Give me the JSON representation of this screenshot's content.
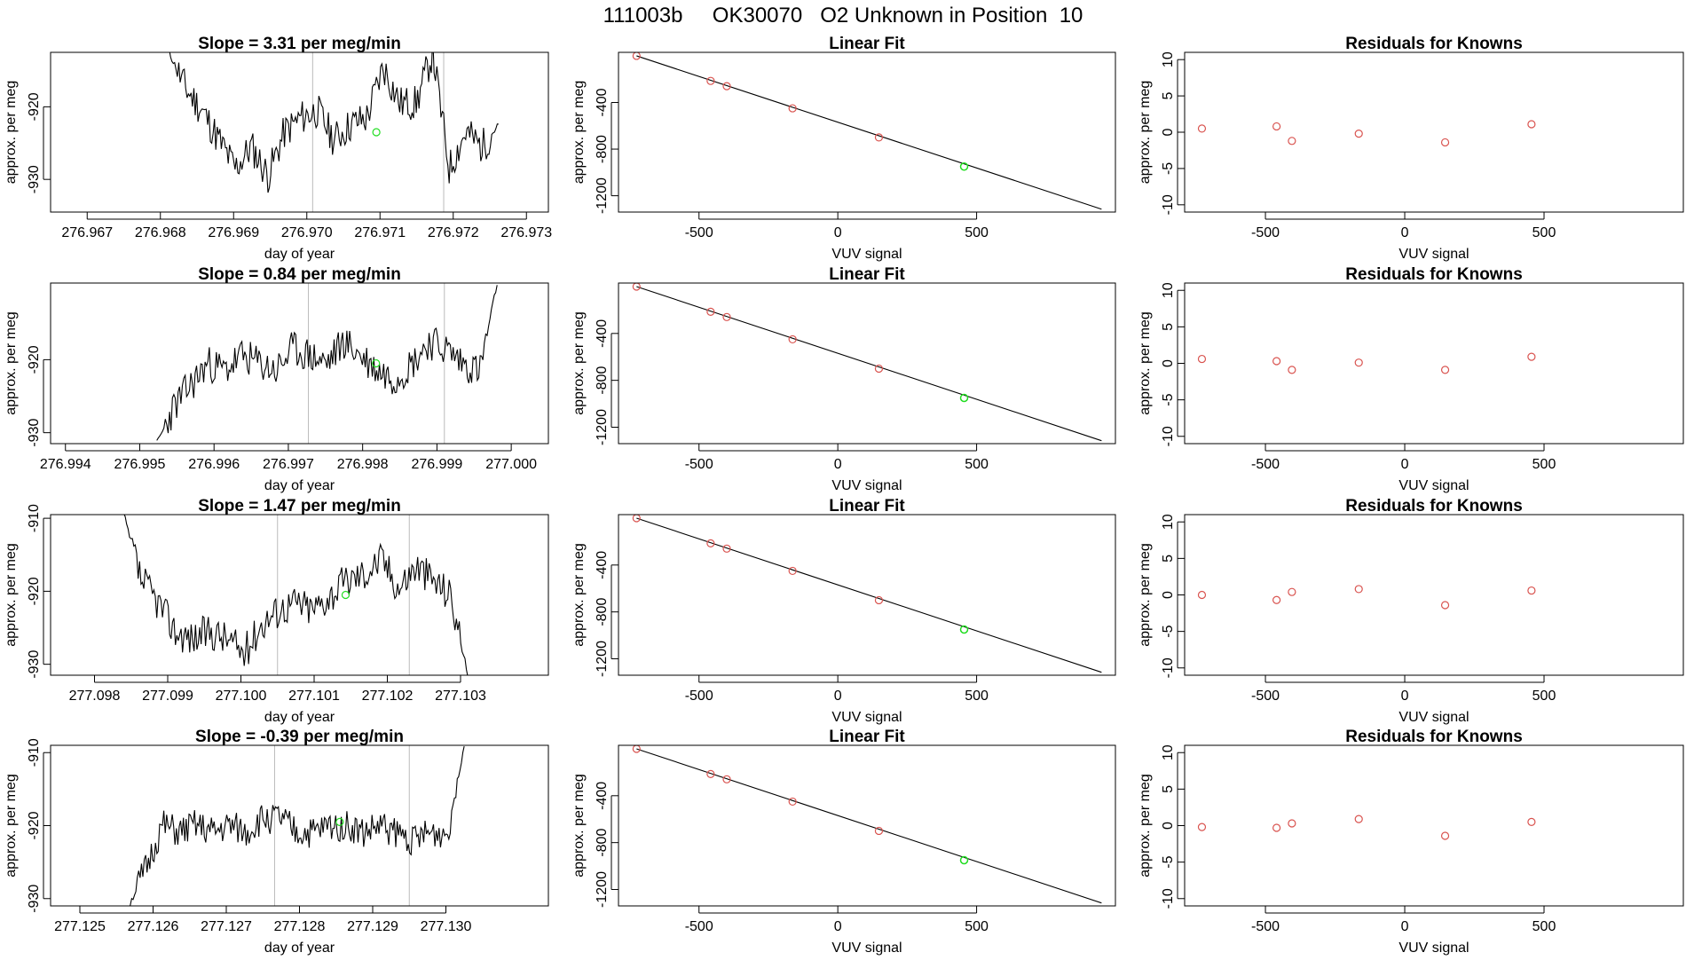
{
  "title": "111003b     OK30070   O2 Unknown in Position  10",
  "colors": {
    "line": "#000000",
    "known_point": "#d9534f",
    "unknown_point": "#22dd22",
    "vline": "#bbbbbb"
  },
  "chart_data": [
    {
      "type": "line",
      "title": "Slope =  3.31  per meg/min",
      "xlabel": "day of year",
      "ylabel": "approx. per meg",
      "xlim": [
        276.9665,
        276.9733
      ],
      "ylim": [
        -934.5,
        -912.5
      ],
      "xticks": [
        "276.967",
        "276.968",
        "276.969",
        "276.970",
        "276.971",
        "276.972",
        "276.973"
      ],
      "yticks": [
        "-920",
        "-930"
      ],
      "start": 276.96812,
      "end": 276.97262,
      "vlines": [
        276.97008,
        276.97187
      ],
      "unknown_point": {
        "x": 276.97095,
        "y": -923.5
      },
      "levels": [
        -912.5,
        -917.5,
        -920.5,
        -924.5,
        -928.5,
        -925.5,
        -929.5,
        -923.5,
        -921.5,
        -920.5,
        -924.5,
        -922.5,
        -921.5,
        -914.5,
        -919.5,
        -919.5,
        -912.5,
        -928.5,
        -923.5,
        -925.5,
        -922.5
      ],
      "amp": 2.5,
      "seed": 11
    },
    {
      "type": "scatter",
      "title": "Linear Fit",
      "xlabel": "VUV signal",
      "ylabel": "approx. per meg",
      "xlim": [
        -790,
        1000
      ],
      "ylim": [
        -1340,
        30
      ],
      "xticks": [
        "-500",
        "0",
        "500"
      ],
      "yticks": [
        "-400",
        "-800",
        "-1200"
      ],
      "known_x": [
        -725,
        -458,
        -400,
        -163,
        148
      ],
      "known_y": [
        0,
        -215,
        -260,
        -450,
        -700
      ],
      "unknown": {
        "x": 455,
        "y": -950
      },
      "fit_line": [
        [
          -725,
          0
        ],
        [
          950,
          -1315
        ]
      ]
    },
    {
      "type": "scatter",
      "title": "Residuals for Knowns",
      "xlabel": "VUV signal",
      "ylabel": "approx. per meg",
      "xlim": [
        -790,
        1000
      ],
      "ylim": [
        -11,
        11
      ],
      "xticks": [
        "-500",
        "0",
        "500"
      ],
      "yticks": [
        "10",
        "5",
        "0",
        "-5",
        "-10"
      ],
      "x": [
        -728,
        -460,
        -405,
        -165,
        145,
        455
      ],
      "y": [
        0.5,
        0.8,
        -1.2,
        -0.2,
        -1.4,
        1.1
      ]
    },
    {
      "type": "line",
      "title": "Slope =  0.84  per meg/min",
      "xlabel": "day of year",
      "ylabel": "approx. per meg",
      "xlim": [
        276.9938,
        277.0005
      ],
      "ylim": [
        -931.5,
        -909.5
      ],
      "xticks": [
        "276.994",
        "276.995",
        "276.996",
        "276.997",
        "276.998",
        "276.999",
        "277.000"
      ],
      "yticks": [
        "-920",
        "-930"
      ],
      "start": 276.99523,
      "end": 276.99981,
      "vlines": [
        276.99727,
        276.9991
      ],
      "unknown_point": {
        "x": 276.99818,
        "y": -920.5
      },
      "levels": [
        -931.5,
        -926.5,
        -923.5,
        -920.5,
        -921.5,
        -919.5,
        -920.5,
        -921.5,
        -918.5,
        -919.5,
        -920.5,
        -917.5,
        -919.5,
        -921.5,
        -922.5,
        -920.5,
        -917.5,
        -918.5,
        -920.5,
        -921.5,
        -909.5
      ],
      "amp": 2.5,
      "seed": 23
    },
    {
      "type": "scatter",
      "title": "Linear Fit",
      "xlabel": "VUV signal",
      "ylabel": "approx. per meg",
      "xlim": [
        -790,
        1000
      ],
      "ylim": [
        -1340,
        30
      ],
      "xticks": [
        "-500",
        "0",
        "500"
      ],
      "yticks": [
        "-400",
        "-800",
        "-1200"
      ],
      "known_x": [
        -725,
        -458,
        -400,
        -163,
        148
      ],
      "known_y": [
        0,
        -215,
        -260,
        -450,
        -700
      ],
      "unknown": {
        "x": 455,
        "y": -950
      },
      "fit_line": [
        [
          -725,
          0
        ],
        [
          950,
          -1315
        ]
      ]
    },
    {
      "type": "scatter",
      "title": "Residuals for Knowns",
      "xlabel": "VUV signal",
      "ylabel": "approx. per meg",
      "xlim": [
        -790,
        1000
      ],
      "ylim": [
        -11,
        11
      ],
      "xticks": [
        "-500",
        "0",
        "500"
      ],
      "yticks": [
        "10",
        "5",
        "0",
        "-5",
        "-10"
      ],
      "x": [
        -728,
        -460,
        -405,
        -165,
        145,
        455
      ],
      "y": [
        0.6,
        0.3,
        -0.9,
        0.1,
        -0.9,
        0.9
      ]
    },
    {
      "type": "line",
      "title": "Slope =  1.47  per meg/min",
      "xlabel": "day of year",
      "ylabel": "approx. per meg",
      "xlim": [
        277.0974,
        277.1042
      ],
      "ylim": [
        -931.5,
        -909.5
      ],
      "xticks": [
        "277.098",
        "277.099",
        "277.100",
        "277.101",
        "277.102",
        "277.103"
      ],
      "yticks": [
        "-910",
        "-920",
        "-930"
      ],
      "start": 277.0984,
      "end": 277.1031,
      "vlines": [
        277.1005,
        277.1023
      ],
      "unknown_point": {
        "x": 277.10143,
        "y": -920.5
      },
      "levels": [
        -909.5,
        -918.5,
        -921.5,
        -925.5,
        -926.5,
        -925.5,
        -926.5,
        -928.5,
        -924.5,
        -922.5,
        -921.5,
        -922.5,
        -920.5,
        -918.5,
        -917.5,
        -915.5,
        -919.5,
        -916.5,
        -918.5,
        -920.5,
        -931.5
      ],
      "amp": 2.5,
      "seed": 37
    },
    {
      "type": "scatter",
      "title": "Linear Fit",
      "xlabel": "VUV signal",
      "ylabel": "approx. per meg",
      "xlim": [
        -790,
        1000
      ],
      "ylim": [
        -1340,
        30
      ],
      "xticks": [
        "-500",
        "0",
        "500"
      ],
      "yticks": [
        "-400",
        "-800",
        "-1200"
      ],
      "known_x": [
        -725,
        -458,
        -400,
        -163,
        148
      ],
      "known_y": [
        0,
        -215,
        -260,
        -450,
        -700
      ],
      "unknown": {
        "x": 455,
        "y": -950
      },
      "fit_line": [
        [
          -725,
          0
        ],
        [
          950,
          -1315
        ]
      ]
    },
    {
      "type": "scatter",
      "title": "Residuals for Knowns",
      "xlabel": "VUV signal",
      "ylabel": "approx. per meg",
      "xlim": [
        -790,
        1000
      ],
      "ylim": [
        -11,
        11
      ],
      "xticks": [
        "-500",
        "0",
        "500"
      ],
      "yticks": [
        "10",
        "5",
        "0",
        "-5",
        "-10"
      ],
      "x": [
        -728,
        -460,
        -405,
        -165,
        145,
        455
      ],
      "y": [
        0.0,
        -0.7,
        0.4,
        0.8,
        -1.4,
        0.6
      ]
    },
    {
      "type": "line",
      "title": "Slope =  -0.39  per meg/min",
      "xlabel": "day of year",
      "ylabel": "approx. per meg",
      "xlim": [
        277.1246,
        277.1314
      ],
      "ylim": [
        -931,
        -909
      ],
      "xticks": [
        "277.125",
        "277.126",
        "277.127",
        "277.128",
        "277.129",
        "277.130"
      ],
      "yticks": [
        "-910",
        "-920",
        "-930"
      ],
      "start": 277.12567,
      "end": 277.13025,
      "vlines": [
        277.12766,
        277.1295
      ],
      "unknown_point": {
        "x": 277.12855,
        "y": -919.5
      },
      "levels": [
        -931,
        -926,
        -920,
        -921,
        -920,
        -921,
        -920,
        -921,
        -919,
        -919,
        -921,
        -921,
        -920,
        -920,
        -921,
        -920,
        -921,
        -922,
        -921,
        -921,
        -909
      ],
      "amp": 2.2,
      "seed": 51
    },
    {
      "type": "scatter",
      "title": "Linear Fit",
      "xlabel": "VUV signal",
      "ylabel": "approx. per meg",
      "xlim": [
        -790,
        1000
      ],
      "ylim": [
        -1340,
        30
      ],
      "xticks": [
        "-500",
        "0",
        "500"
      ],
      "yticks": [
        "-400",
        "-800",
        "-1200"
      ],
      "known_x": [
        -725,
        -458,
        -400,
        -163,
        148
      ],
      "known_y": [
        0,
        -215,
        -260,
        -450,
        -700
      ],
      "unknown": {
        "x": 455,
        "y": -950
      },
      "fit_line": [
        [
          -725,
          0
        ],
        [
          950,
          -1315
        ]
      ]
    },
    {
      "type": "scatter",
      "title": "Residuals for Knowns",
      "xlabel": "VUV signal",
      "ylabel": "approx. per meg",
      "xlim": [
        -790,
        1000
      ],
      "ylim": [
        -11,
        11
      ],
      "xticks": [
        "-500",
        "0",
        "500"
      ],
      "yticks": [
        "10",
        "5",
        "0",
        "-5",
        "-10"
      ],
      "x": [
        -728,
        -460,
        -405,
        -165,
        145,
        455
      ],
      "y": [
        -0.2,
        -0.3,
        0.3,
        0.9,
        -1.4,
        0.5
      ]
    }
  ]
}
